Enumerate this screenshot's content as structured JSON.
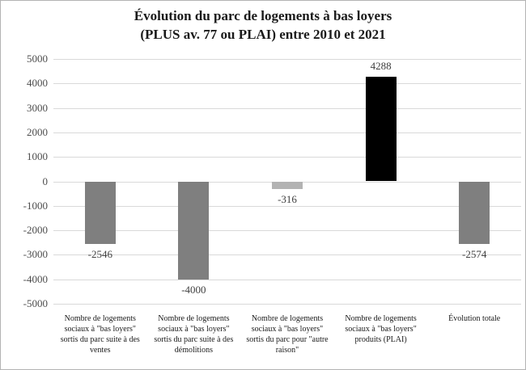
{
  "page": {
    "background": "#ffffff",
    "border_color": "#b3b3b3"
  },
  "chart_data": {
    "type": "bar",
    "title": "Évolution du parc de logements à bas loyers (PLUS av. 77 ou PLAI) entre 2010 et 2021",
    "title_line1": "Évolution du parc de logements à bas loyers",
    "title_line2": "(PLUS av. 77 ou PLAI) entre 2010 et 2021",
    "categories": [
      "Nombre de logements sociaux à \"bas loyers\" sortis du parc suite à des ventes",
      "Nombre de logements sociaux à \"bas loyers\" sortis du parc suite à des démolitions",
      "Nombre de logements sociaux à \"bas loyers\" sortis du parc pour \"autre raison\"",
      "Nombre de logements sociaux à \"bas loyers\" produits (PLAI)",
      "Évolution totale"
    ],
    "values": [
      -2546,
      -4000,
      -316,
      4288,
      -2574
    ],
    "data_labels": [
      "-2546",
      "-4000",
      "-316",
      "4288",
      "-2574"
    ],
    "bar_colors": [
      "#7f7f7f",
      "#7f7f7f",
      "#b3b3b3",
      "#000000",
      "#7f7f7f"
    ],
    "ylim": [
      -5000,
      5000
    ],
    "yticks": [
      5000,
      4000,
      3000,
      2000,
      1000,
      0,
      -1000,
      -2000,
      -3000,
      -4000,
      -5000
    ],
    "xlabel": "",
    "ylabel": "",
    "grid": true,
    "legend_position": "none",
    "colors": {
      "gridline": "#d9d9d9",
      "tick_label": "#4d4d4d",
      "data_label": "#404040",
      "title": "#1a1a1a",
      "category_label": "#1a1a1a"
    }
  }
}
